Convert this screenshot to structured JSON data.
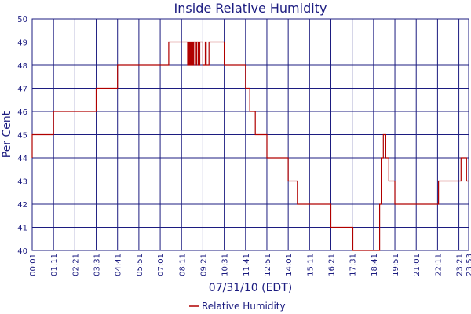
{
  "chart_data": {
    "type": "line",
    "title": "Inside Relative Humidity",
    "xlabel": "07/31/10 (EDT)",
    "ylabel": "Per Cent",
    "ylim": [
      40,
      50
    ],
    "yticks": [
      "40",
      "41",
      "42",
      "43",
      "44",
      "45",
      "46",
      "47",
      "48",
      "49",
      "50"
    ],
    "xticks": [
      "00:01",
      "01:11",
      "02:21",
      "03:31",
      "04:41",
      "05:51",
      "07:01",
      "08:11",
      "09:21",
      "10:31",
      "11:41",
      "12:51",
      "14:01",
      "15:11",
      "16:21",
      "17:31",
      "18:41",
      "19:51",
      "21:01",
      "22:11",
      "23:21",
      "23:53"
    ],
    "grid": true,
    "legend_position": "bottom-center",
    "series": [
      {
        "name": "Relative Humidity",
        "color": "#b00000",
        "x": [
          "00:01",
          "00:06",
          "01:11",
          "01:13",
          "02:21",
          "03:31",
          "03:33",
          "04:41",
          "04:43",
          "05:51",
          "07:01",
          "07:29",
          "08:11",
          "08:31",
          "08:33",
          "08:36",
          "08:38",
          "08:41",
          "08:44",
          "08:48",
          "08:51",
          "08:55",
          "08:59",
          "09:01",
          "09:06",
          "09:11",
          "09:16",
          "09:21",
          "09:29",
          "09:32",
          "09:37",
          "09:41",
          "09:51",
          "10:11",
          "10:31",
          "10:44",
          "10:51",
          "11:41",
          "11:44",
          "11:55",
          "12:01",
          "12:13",
          "12:19",
          "12:26",
          "12:51",
          "13:03",
          "13:09",
          "14:01",
          "14:03",
          "14:31",
          "14:39",
          "15:11",
          "16:21",
          "16:23",
          "17:31",
          "17:33",
          "17:54",
          "18:41",
          "19:01",
          "19:06",
          "19:13",
          "19:16",
          "19:21",
          "19:27",
          "19:31",
          "19:41",
          "19:51",
          "19:56",
          "21:01",
          "21:51",
          "22:11",
          "22:14",
          "22:21",
          "22:56",
          "23:21",
          "23:28",
          "23:46",
          "23:53"
        ],
        "values": [
          44,
          45,
          45,
          46,
          46,
          46,
          47,
          47,
          48,
          48,
          48,
          48,
          49,
          49,
          48,
          49,
          48,
          49,
          48,
          49,
          48,
          49,
          49,
          48,
          49,
          48,
          49,
          49,
          48,
          49,
          48,
          48,
          49,
          49,
          49,
          48,
          48,
          48,
          47,
          47,
          46,
          46,
          45,
          45,
          45,
          44,
          44,
          44,
          43,
          43,
          42,
          42,
          42,
          41,
          41,
          41,
          40,
          40,
          40,
          42,
          44,
          45,
          45,
          44,
          44,
          43,
          43,
          42,
          42,
          42,
          42,
          42,
          43,
          43,
          43,
          43,
          44,
          43
        ]
      }
    ]
  }
}
